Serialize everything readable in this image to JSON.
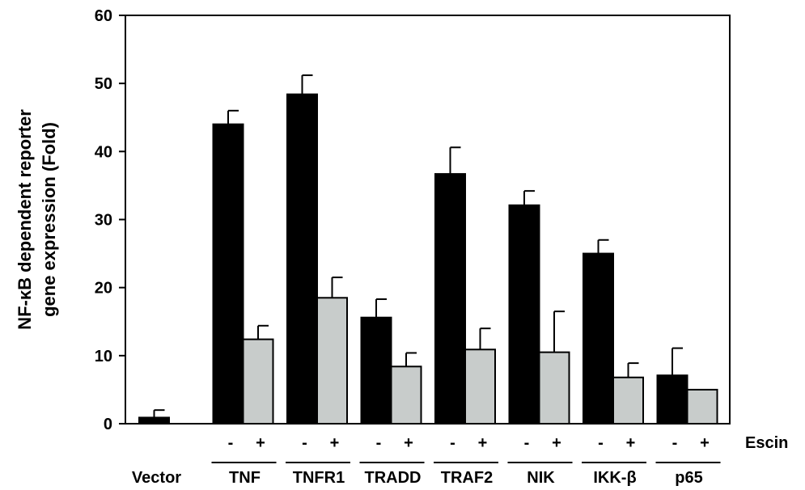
{
  "chart_data": {
    "type": "bar",
    "ylabel_lines": [
      "NF-κB dependent reporter",
      "gene expression (Fold)"
    ],
    "ylim": [
      0,
      60
    ],
    "yticks": [
      "0",
      "10",
      "20",
      "30",
      "40",
      "50",
      "60"
    ],
    "treatment_label": "Escin",
    "groups": [
      {
        "label": "Vector",
        "signs": [],
        "values": [
          0.9
        ],
        "errors": [
          1.1
        ]
      },
      {
        "label": "TNF",
        "signs": [
          "-",
          "+"
        ],
        "values": [
          44.0,
          12.4
        ],
        "errors": [
          2.0,
          2.0
        ]
      },
      {
        "label": "TNFR1",
        "signs": [
          "-",
          "+"
        ],
        "values": [
          48.4,
          18.5
        ],
        "errors": [
          2.8,
          3.0
        ]
      },
      {
        "label": "TRADD",
        "signs": [
          "-",
          "+"
        ],
        "values": [
          15.6,
          8.4
        ],
        "errors": [
          2.7,
          2.0
        ]
      },
      {
        "label": "TRAF2",
        "signs": [
          "-",
          "+"
        ],
        "values": [
          36.7,
          10.9
        ],
        "errors": [
          3.9,
          3.1
        ]
      },
      {
        "label": "NIK",
        "signs": [
          "-",
          "+"
        ],
        "values": [
          32.1,
          10.5
        ],
        "errors": [
          2.1,
          6.0
        ]
      },
      {
        "label": "IKK-β",
        "signs": [
          "-",
          "+"
        ],
        "values": [
          25.0,
          6.8
        ],
        "errors": [
          2.0,
          2.1
        ]
      },
      {
        "label": "p65",
        "signs": [
          "-",
          "+"
        ],
        "values": [
          7.1,
          5.0
        ],
        "errors": [
          4.0,
          0.0
        ]
      }
    ],
    "colors": {
      "untreated": "#000000",
      "escin": "#c8cccb"
    }
  }
}
